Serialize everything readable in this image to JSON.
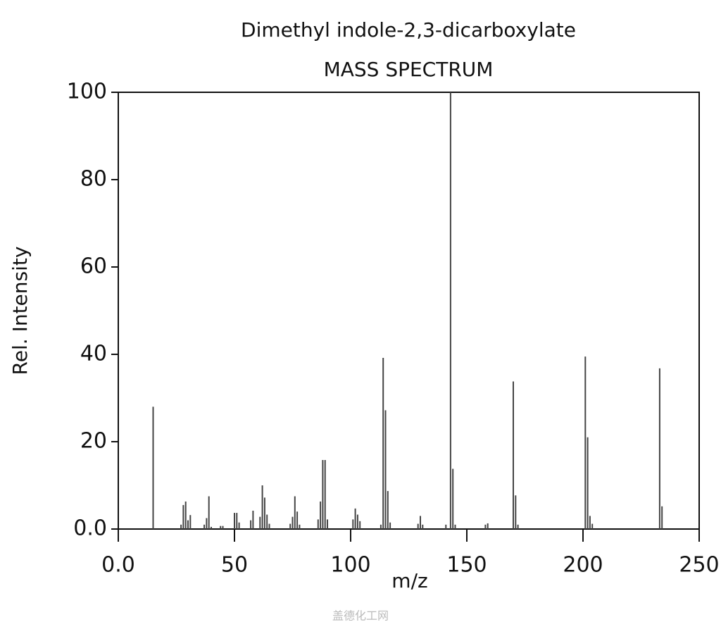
{
  "chart_data": {
    "type": "stem",
    "title": "Dimethyl indole-2,3-dicarboxylate",
    "subtitle": "MASS SPECTRUM",
    "xlabel": "m/z",
    "ylabel": "Rel. Intensity",
    "watermark": "盖德化工网",
    "color": "#444444",
    "x": [
      15,
      27,
      28,
      29,
      30,
      31,
      37,
      38,
      39,
      40,
      44,
      45,
      50,
      51,
      52,
      57,
      58,
      61,
      62,
      63,
      64,
      65,
      74,
      75,
      76,
      77,
      78,
      86,
      87,
      88,
      89,
      90,
      101,
      102,
      103,
      104,
      113,
      114,
      115,
      116,
      117,
      129,
      130,
      131,
      141,
      143,
      144,
      145,
      158,
      159,
      170,
      171,
      172,
      201,
      202,
      203,
      204,
      233,
      234
    ],
    "values": [
      28,
      1,
      5.5,
      6.3,
      2,
      3.2,
      1,
      2.5,
      7.5,
      0.5,
      0.7,
      0.7,
      3.7,
      3.7,
      1.5,
      2,
      4.2,
      2.8,
      10,
      7.2,
      3.3,
      1.2,
      1.2,
      2.8,
      7.5,
      4,
      1,
      2.2,
      6.3,
      15.8,
      15.8,
      2.2,
      2.2,
      4.7,
      3.3,
      1.8,
      1,
      39.2,
      27.2,
      8.7,
      1.5,
      1.2,
      3,
      1,
      1,
      100,
      13.8,
      1,
      1,
      1.3,
      33.8,
      7.7,
      1,
      39.5,
      21,
      3,
      1.2,
      36.8,
      5.2
    ],
    "xlim": [
      0,
      250
    ],
    "xticks": [
      {
        "value": 0,
        "label": "0.0"
      },
      50,
      100,
      150,
      200,
      250
    ],
    "ylim": [
      0,
      100
    ],
    "yticks": [
      {
        "value": 0,
        "label": "0.0"
      },
      20,
      40,
      60,
      80,
      100
    ]
  }
}
